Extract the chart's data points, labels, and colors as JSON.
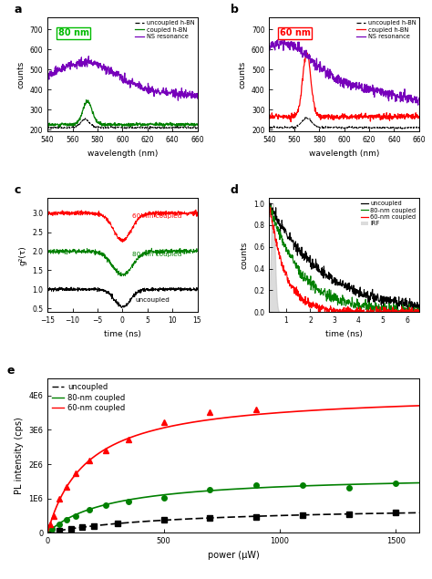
{
  "panel_a": {
    "label": "80 nm",
    "label_color": "#00bb00",
    "x_range": [
      540,
      660
    ],
    "y_range": [
      190,
      760
    ],
    "yticks": [
      200,
      300,
      400,
      500,
      600,
      700
    ],
    "xlabel": "wavelength (nm)",
    "ylabel": "counts"
  },
  "panel_b": {
    "label": "60 nm",
    "label_color": "#ff0000",
    "x_range": [
      540,
      660
    ],
    "y_range": [
      190,
      760
    ],
    "yticks": [
      200,
      300,
      400,
      500,
      600,
      700
    ],
    "xlabel": "wavelength (nm)",
    "ylabel": "counts"
  },
  "panel_c": {
    "xlabel": "time (ns)",
    "ylabel": "g²(τ)",
    "x_range": [
      -15,
      15
    ],
    "y_range": [
      0.4,
      3.4
    ],
    "yticks": [
      0.5,
      1.0,
      1.5,
      2.0,
      2.5,
      3.0
    ],
    "xticks": [
      -15,
      -10,
      -5,
      0,
      5,
      10,
      15
    ]
  },
  "panel_d": {
    "xlabel": "time (ns)",
    "ylabel": "counts",
    "x_range": [
      0.3,
      6.5
    ],
    "y_range": [
      0,
      1.05
    ],
    "yticks": [
      0.0,
      0.2,
      0.4,
      0.6,
      0.8,
      1.0
    ],
    "xticks": [
      1,
      2,
      3,
      4,
      5,
      6
    ],
    "legend": [
      "uncoupled",
      "80-nm coupled",
      "60-nm coupled",
      "IRF"
    ]
  },
  "panel_e": {
    "xlabel": "power (μW)",
    "ylabel": "PL intensity (cps)",
    "x_range": [
      0,
      1600
    ],
    "y_range": [
      0,
      4500000.0
    ],
    "yticks": [
      0,
      1000000,
      2000000,
      3000000,
      4000000
    ],
    "ytick_labels": [
      "0",
      "1E6",
      "2E6",
      "3E6",
      "4E6"
    ],
    "legend": [
      "uncoupled",
      "80-nm coupled",
      "60-nm coupled"
    ],
    "xticks": [
      0,
      500,
      1000,
      1500
    ]
  },
  "colors": {
    "uncoupled": "#000000",
    "coupled_green": "#008000",
    "coupled_red": "#ff0000",
    "ns_purple": "#7700bb",
    "irf_gray": "#bbbbbb"
  },
  "bg_color": "#ffffff"
}
